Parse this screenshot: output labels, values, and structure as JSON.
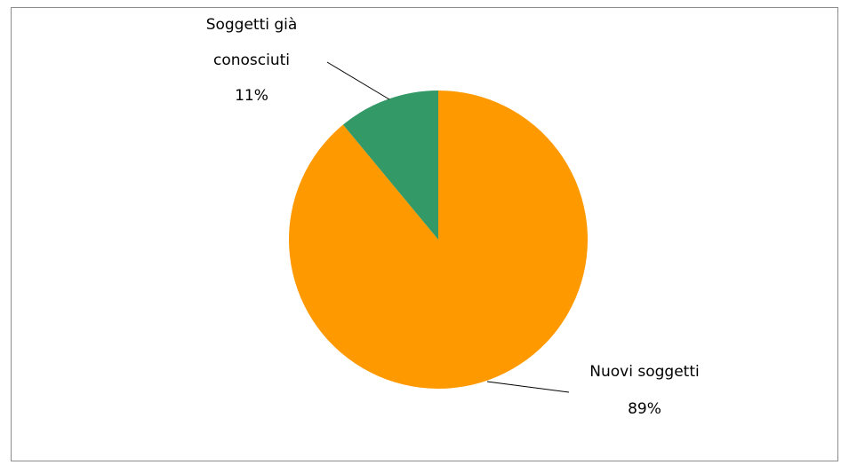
{
  "chart_data": {
    "type": "pie",
    "categories": [
      "Nuovi soggetti",
      "Soggetti già conosciuti"
    ],
    "values": [
      89,
      11
    ],
    "value_labels": [
      "89%",
      "11%"
    ],
    "colors": [
      "#ff9900",
      "#339966"
    ]
  }
}
